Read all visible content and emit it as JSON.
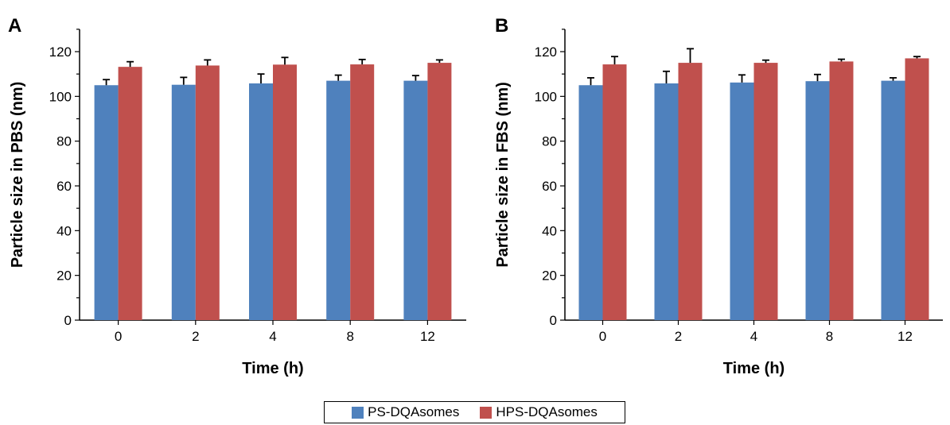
{
  "colors": {
    "series_1": "#4f81bd",
    "series_2": "#c0504d",
    "axis": "#000000"
  },
  "legend": {
    "items": [
      {
        "label": "PS-DQAsomes",
        "color": "#4f81bd"
      },
      {
        "label": "HPS-DQAsomes",
        "color": "#c0504d"
      }
    ]
  },
  "chart_data": [
    {
      "type": "bar",
      "panel_label": "A",
      "title": "",
      "xlabel": "Time (h)",
      "ylabel": "Particle size in PBS (nm)",
      "ylim": [
        0,
        130
      ],
      "yticks": [
        0,
        20,
        40,
        60,
        80,
        100,
        120
      ],
      "grid": false,
      "categories": [
        "0",
        "2",
        "4",
        "8",
        "12"
      ],
      "series": [
        {
          "name": "PS-DQAsomes",
          "values": [
            105,
            105.2,
            105.8,
            107,
            107
          ],
          "errors": [
            2.5,
            3.3,
            4.2,
            2.5,
            2.3
          ]
        },
        {
          "name": "HPS-DQAsomes",
          "values": [
            113.2,
            113.8,
            114.2,
            114.3,
            115
          ],
          "errors": [
            2.3,
            2.5,
            3.2,
            2.2,
            1.3
          ]
        }
      ]
    },
    {
      "type": "bar",
      "panel_label": "B",
      "title": "",
      "xlabel": "Time (h)",
      "ylabel": "Particle size in FBS (nm)",
      "ylim": [
        0,
        130
      ],
      "yticks": [
        0,
        20,
        40,
        60,
        80,
        100,
        120
      ],
      "grid": false,
      "categories": [
        "0",
        "2",
        "4",
        "8",
        "12"
      ],
      "series": [
        {
          "name": "PS-DQAsomes",
          "values": [
            105,
            105.8,
            106.2,
            106.8,
            107
          ],
          "errors": [
            3.3,
            5.4,
            3.4,
            3.0,
            1.3
          ]
        },
        {
          "name": "HPS-DQAsomes",
          "values": [
            114.3,
            115,
            115,
            115.6,
            117
          ],
          "errors": [
            3.5,
            6.3,
            1.2,
            1.0,
            0.8
          ]
        }
      ]
    }
  ],
  "legend_placement": "bottom-center"
}
